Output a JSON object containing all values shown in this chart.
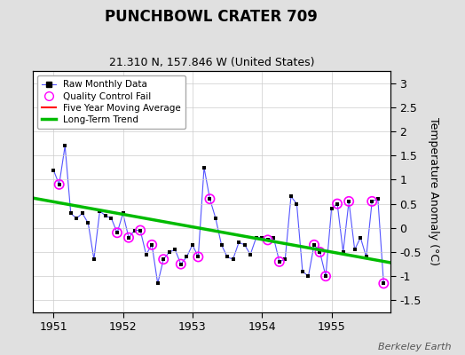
{
  "title": "PUNCHBOWL CRATER 709",
  "subtitle": "21.310 N, 157.846 W (United States)",
  "ylabel": "Temperature Anomaly (°C)",
  "watermark": "Berkeley Earth",
  "ylim": [
    -1.75,
    3.25
  ],
  "xlim": [
    1950.7,
    1955.85
  ],
  "yticks": [
    -1.5,
    -1.0,
    -0.5,
    0.0,
    0.5,
    1.0,
    1.5,
    2.0,
    2.5,
    3.0
  ],
  "xticks": [
    1951,
    1952,
    1953,
    1954,
    1955
  ],
  "bg_color": "#e0e0e0",
  "plot_bg_color": "#ffffff",
  "raw_x": [
    1951.0,
    1951.083,
    1951.167,
    1951.25,
    1951.333,
    1951.417,
    1951.5,
    1951.583,
    1951.667,
    1951.75,
    1951.833,
    1951.917,
    1952.0,
    1952.083,
    1952.167,
    1952.25,
    1952.333,
    1952.417,
    1952.5,
    1952.583,
    1952.667,
    1952.75,
    1952.833,
    1952.917,
    1953.0,
    1953.083,
    1953.167,
    1953.25,
    1953.333,
    1953.417,
    1953.5,
    1953.583,
    1953.667,
    1953.75,
    1953.833,
    1953.917,
    1954.0,
    1954.083,
    1954.167,
    1954.25,
    1954.333,
    1954.417,
    1954.5,
    1954.583,
    1954.667,
    1954.75,
    1954.833,
    1954.917,
    1955.0,
    1955.083,
    1955.167,
    1955.25,
    1955.333,
    1955.417,
    1955.5,
    1955.583,
    1955.667,
    1955.75
  ],
  "raw_y": [
    1.2,
    0.9,
    1.7,
    0.3,
    0.2,
    0.3,
    0.1,
    -0.65,
    0.35,
    0.25,
    0.2,
    -0.1,
    0.3,
    -0.2,
    -0.05,
    -0.05,
    -0.55,
    -0.35,
    -1.15,
    -0.65,
    -0.5,
    -0.45,
    -0.75,
    -0.6,
    -0.35,
    -0.6,
    1.25,
    0.6,
    0.2,
    -0.35,
    -0.6,
    -0.65,
    -0.3,
    -0.35,
    -0.55,
    -0.2,
    -0.2,
    -0.25,
    -0.2,
    -0.7,
    -0.65,
    0.65,
    0.5,
    -0.9,
    -1.0,
    -0.35,
    -0.5,
    -1.0,
    0.4,
    0.5,
    -0.5,
    0.55,
    -0.45,
    -0.2,
    -0.6,
    0.55,
    0.6,
    -1.15
  ],
  "qc_fail_x": [
    1951.083,
    1951.917,
    1952.083,
    1952.25,
    1952.417,
    1952.583,
    1952.833,
    1953.083,
    1953.25,
    1954.083,
    1954.25,
    1954.75,
    1954.833,
    1954.917,
    1955.083,
    1955.25,
    1955.583,
    1955.75
  ],
  "qc_fail_y": [
    0.9,
    -0.1,
    -0.2,
    -0.05,
    -0.35,
    -0.65,
    -0.75,
    -0.6,
    0.6,
    -0.25,
    -0.7,
    -0.35,
    -0.5,
    -1.0,
    0.5,
    0.55,
    0.55,
    -1.15
  ],
  "trend_x": [
    1950.7,
    1955.85
  ],
  "trend_y": [
    0.62,
    -0.72
  ],
  "raw_line_color": "#5555ff",
  "raw_marker_color": "#000000",
  "qc_color": "#ff00ff",
  "trend_color": "#00bb00",
  "mavg_color": "#ff0000",
  "grid_color": "#cccccc"
}
